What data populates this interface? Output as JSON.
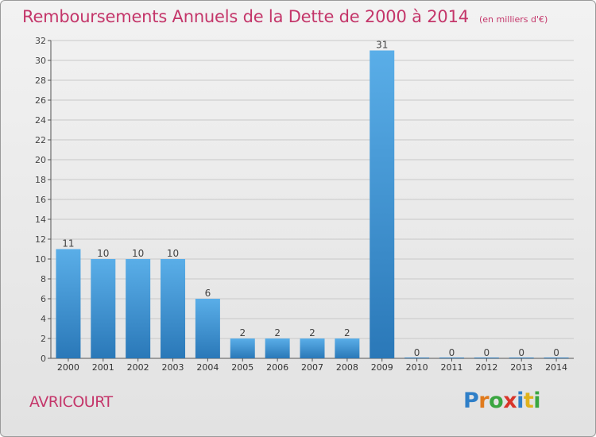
{
  "header": {
    "title": "Remboursements Annuels de la Dette de 2000 à 2014",
    "unit": "(en milliers d'€)"
  },
  "commune": "AVRICOURT",
  "logo": {
    "text": "Proxiti",
    "letters": [
      "P",
      "r",
      "o",
      "x",
      "i",
      "t",
      "i"
    ],
    "colors": [
      "#2f7fc8",
      "#e07a1c",
      "#3aa640",
      "#d8352a",
      "#2f7fc8",
      "#e0b21c",
      "#3aa640"
    ]
  },
  "colors": {
    "accent": "#c4366a",
    "bar_top": "#5aaee8",
    "bar_bottom": "#2a78b8",
    "grid": "#c8c8c8"
  },
  "chart_data": {
    "type": "bar",
    "title": "Remboursements Annuels de la Dette de 2000 à 2014",
    "subtitle": "(en milliers d'€)",
    "categories": [
      "2000",
      "2001",
      "2002",
      "2003",
      "2004",
      "2005",
      "2006",
      "2007",
      "2008",
      "2009",
      "2010",
      "2011",
      "2012",
      "2013",
      "2014"
    ],
    "values": [
      11,
      10,
      10,
      10,
      6,
      2,
      2,
      2,
      2,
      31,
      0,
      0,
      0,
      0,
      0
    ],
    "ylim": [
      0,
      32
    ],
    "yticks": [
      0,
      2,
      4,
      6,
      8,
      10,
      12,
      14,
      16,
      18,
      20,
      22,
      24,
      26,
      28,
      30,
      32
    ],
    "grid": true,
    "data_labels": true
  }
}
